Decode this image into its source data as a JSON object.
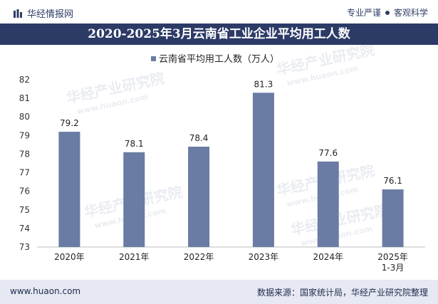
{
  "header": {
    "brand": "华经情报网",
    "tag1": "专业严谨",
    "tag2": "客观科学"
  },
  "chart_data": {
    "type": "bar",
    "title": "2020-2025年3月云南省工业企业平均用工人数",
    "legend": "云南省平均用工人数（万人）",
    "categories": [
      "2020年",
      "2021年",
      "2022年",
      "2023年",
      "2024年",
      "2025年\n1-3月"
    ],
    "values": [
      79.2,
      78.1,
      78.4,
      81.3,
      77.6,
      76.1
    ],
    "value_labels": [
      "79.2",
      "78.1",
      "78.4",
      "81.3",
      "77.6",
      "76.1"
    ],
    "ylim": [
      73,
      82
    ],
    "yticks": [
      73,
      74,
      75,
      76,
      77,
      78,
      79,
      80,
      81,
      82
    ],
    "bar_color": "#6a7ca3",
    "xlabel": "",
    "ylabel": ""
  },
  "watermark": {
    "cn": "华经产业研究院",
    "en": "www.huaon.com"
  },
  "footer": {
    "site": "www.huaon.com",
    "source": "数据来源：国家统计局，华经产业研究院整理"
  }
}
